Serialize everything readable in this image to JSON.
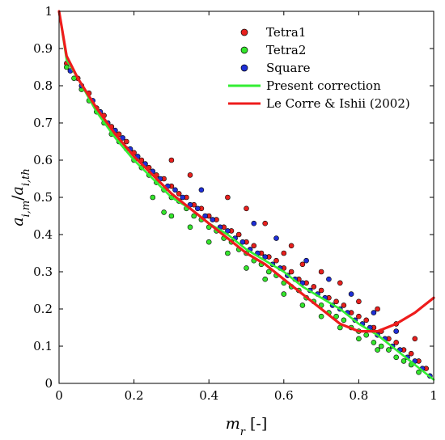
{
  "chart_data": {
    "type": "scatter",
    "xlabel": "m_r [-]",
    "ylabel": "a_{i,m}/a_{i,th}",
    "xlim": [
      0,
      1
    ],
    "ylim": [
      0,
      1
    ],
    "xticks": [
      "0",
      "0.2",
      "0.4",
      "0.6",
      "0.8",
      "1"
    ],
    "yticks": [
      "0",
      "0.1",
      "0.2",
      "0.3",
      "0.4",
      "0.5",
      "0.6",
      "0.7",
      "0.8",
      "0.9",
      "1"
    ],
    "grid": false,
    "legend_position": "top-right",
    "series": [
      {
        "name": "Tetra1",
        "kind": "scatter",
        "color": "#e8201e",
        "points": [
          [
            0.02,
            0.86
          ],
          [
            0.05,
            0.82
          ],
          [
            0.08,
            0.78
          ],
          [
            0.1,
            0.74
          ],
          [
            0.12,
            0.72
          ],
          [
            0.14,
            0.69
          ],
          [
            0.16,
            0.67
          ],
          [
            0.18,
            0.65
          ],
          [
            0.2,
            0.62
          ],
          [
            0.22,
            0.6
          ],
          [
            0.24,
            0.58
          ],
          [
            0.26,
            0.56
          ],
          [
            0.28,
            0.55
          ],
          [
            0.3,
            0.53
          ],
          [
            0.32,
            0.51
          ],
          [
            0.34,
            0.5
          ],
          [
            0.36,
            0.48
          ],
          [
            0.38,
            0.47
          ],
          [
            0.4,
            0.45
          ],
          [
            0.42,
            0.44
          ],
          [
            0.44,
            0.42
          ],
          [
            0.46,
            0.41
          ],
          [
            0.48,
            0.4
          ],
          [
            0.5,
            0.38
          ],
          [
            0.52,
            0.37
          ],
          [
            0.54,
            0.35
          ],
          [
            0.56,
            0.34
          ],
          [
            0.58,
            0.33
          ],
          [
            0.6,
            0.31
          ],
          [
            0.62,
            0.3
          ],
          [
            0.64,
            0.28
          ],
          [
            0.66,
            0.27
          ],
          [
            0.68,
            0.26
          ],
          [
            0.7,
            0.25
          ],
          [
            0.72,
            0.23
          ],
          [
            0.74,
            0.22
          ],
          [
            0.76,
            0.21
          ],
          [
            0.78,
            0.19
          ],
          [
            0.8,
            0.18
          ],
          [
            0.82,
            0.17
          ],
          [
            0.84,
            0.15
          ],
          [
            0.86,
            0.14
          ],
          [
            0.88,
            0.12
          ],
          [
            0.9,
            0.11
          ],
          [
            0.92,
            0.09
          ],
          [
            0.94,
            0.08
          ],
          [
            0.96,
            0.06
          ],
          [
            0.98,
            0.04
          ],
          [
            0.6,
            0.35
          ],
          [
            0.65,
            0.32
          ],
          [
            0.7,
            0.3
          ],
          [
            0.75,
            0.27
          ],
          [
            0.8,
            0.22
          ],
          [
            0.85,
            0.2
          ],
          [
            0.9,
            0.16
          ],
          [
            0.95,
            0.12
          ],
          [
            0.45,
            0.5
          ],
          [
            0.5,
            0.47
          ],
          [
            0.55,
            0.43
          ],
          [
            0.35,
            0.56
          ],
          [
            0.3,
            0.6
          ],
          [
            0.62,
            0.37
          ]
        ]
      },
      {
        "name": "Tetra2",
        "kind": "scatter",
        "color": "#34e52c",
        "points": [
          [
            0.02,
            0.85
          ],
          [
            0.04,
            0.82
          ],
          [
            0.06,
            0.79
          ],
          [
            0.08,
            0.76
          ],
          [
            0.1,
            0.73
          ],
          [
            0.12,
            0.7
          ],
          [
            0.14,
            0.67
          ],
          [
            0.16,
            0.65
          ],
          [
            0.18,
            0.63
          ],
          [
            0.2,
            0.6
          ],
          [
            0.22,
            0.58
          ],
          [
            0.24,
            0.56
          ],
          [
            0.26,
            0.54
          ],
          [
            0.28,
            0.52
          ],
          [
            0.3,
            0.5
          ],
          [
            0.32,
            0.49
          ],
          [
            0.34,
            0.47
          ],
          [
            0.36,
            0.45
          ],
          [
            0.38,
            0.44
          ],
          [
            0.4,
            0.42
          ],
          [
            0.42,
            0.41
          ],
          [
            0.44,
            0.39
          ],
          [
            0.46,
            0.38
          ],
          [
            0.48,
            0.36
          ],
          [
            0.5,
            0.35
          ],
          [
            0.52,
            0.33
          ],
          [
            0.54,
            0.32
          ],
          [
            0.56,
            0.3
          ],
          [
            0.58,
            0.29
          ],
          [
            0.6,
            0.27
          ],
          [
            0.62,
            0.26
          ],
          [
            0.64,
            0.25
          ],
          [
            0.66,
            0.23
          ],
          [
            0.68,
            0.22
          ],
          [
            0.7,
            0.21
          ],
          [
            0.72,
            0.19
          ],
          [
            0.74,
            0.18
          ],
          [
            0.76,
            0.17
          ],
          [
            0.78,
            0.15
          ],
          [
            0.8,
            0.14
          ],
          [
            0.82,
            0.13
          ],
          [
            0.84,
            0.11
          ],
          [
            0.86,
            0.1
          ],
          [
            0.88,
            0.09
          ],
          [
            0.9,
            0.07
          ],
          [
            0.92,
            0.06
          ],
          [
            0.94,
            0.05
          ],
          [
            0.96,
            0.03
          ],
          [
            0.3,
            0.45
          ],
          [
            0.4,
            0.38
          ],
          [
            0.5,
            0.31
          ],
          [
            0.6,
            0.24
          ],
          [
            0.7,
            0.18
          ],
          [
            0.8,
            0.12
          ],
          [
            0.25,
            0.5
          ],
          [
            0.35,
            0.42
          ],
          [
            0.45,
            0.35
          ],
          [
            0.55,
            0.28
          ],
          [
            0.65,
            0.21
          ],
          [
            0.75,
            0.15
          ],
          [
            0.85,
            0.09
          ],
          [
            0.28,
            0.46
          ]
        ]
      },
      {
        "name": "Square",
        "kind": "scatter",
        "color": "#1f2fd6",
        "points": [
          [
            0.03,
            0.84
          ],
          [
            0.06,
            0.8
          ],
          [
            0.09,
            0.76
          ],
          [
            0.11,
            0.73
          ],
          [
            0.13,
            0.7
          ],
          [
            0.15,
            0.68
          ],
          [
            0.17,
            0.66
          ],
          [
            0.19,
            0.63
          ],
          [
            0.21,
            0.61
          ],
          [
            0.23,
            0.59
          ],
          [
            0.25,
            0.57
          ],
          [
            0.27,
            0.55
          ],
          [
            0.29,
            0.53
          ],
          [
            0.31,
            0.52
          ],
          [
            0.33,
            0.5
          ],
          [
            0.35,
            0.48
          ],
          [
            0.37,
            0.47
          ],
          [
            0.39,
            0.45
          ],
          [
            0.41,
            0.44
          ],
          [
            0.43,
            0.42
          ],
          [
            0.45,
            0.41
          ],
          [
            0.47,
            0.39
          ],
          [
            0.49,
            0.38
          ],
          [
            0.51,
            0.36
          ],
          [
            0.53,
            0.35
          ],
          [
            0.55,
            0.34
          ],
          [
            0.57,
            0.32
          ],
          [
            0.59,
            0.31
          ],
          [
            0.61,
            0.29
          ],
          [
            0.63,
            0.28
          ],
          [
            0.65,
            0.27
          ],
          [
            0.67,
            0.25
          ],
          [
            0.69,
            0.24
          ],
          [
            0.71,
            0.23
          ],
          [
            0.73,
            0.21
          ],
          [
            0.75,
            0.2
          ],
          [
            0.77,
            0.19
          ],
          [
            0.79,
            0.17
          ],
          [
            0.81,
            0.16
          ],
          [
            0.83,
            0.15
          ],
          [
            0.85,
            0.13
          ],
          [
            0.87,
            0.12
          ],
          [
            0.89,
            0.1
          ],
          [
            0.91,
            0.09
          ],
          [
            0.93,
            0.07
          ],
          [
            0.95,
            0.06
          ],
          [
            0.97,
            0.04
          ],
          [
            0.99,
            0.02
          ],
          [
            0.52,
            0.43
          ],
          [
            0.58,
            0.39
          ],
          [
            0.66,
            0.33
          ],
          [
            0.72,
            0.28
          ],
          [
            0.78,
            0.24
          ],
          [
            0.84,
            0.19
          ],
          [
            0.9,
            0.14
          ],
          [
            0.38,
            0.52
          ]
        ]
      },
      {
        "name": "Present correction",
        "kind": "line",
        "color": "#33ee33",
        "x": [
          0,
          0.02,
          0.05,
          0.1,
          0.15,
          0.2,
          0.25,
          0.3,
          0.35,
          0.4,
          0.45,
          0.5,
          0.55,
          0.6,
          0.65,
          0.7,
          0.75,
          0.8,
          0.85,
          0.9,
          0.95,
          1
        ],
        "y": [
          1,
          0.87,
          0.82,
          0.73,
          0.66,
          0.6,
          0.55,
          0.5,
          0.47,
          0.43,
          0.4,
          0.36,
          0.33,
          0.3,
          0.26,
          0.23,
          0.2,
          0.16,
          0.13,
          0.09,
          0.05,
          0.01
        ]
      },
      {
        "name": "Le Corre & Ishii (2002)",
        "kind": "line",
        "color": "#ee1c1c",
        "x": [
          0,
          0.02,
          0.05,
          0.1,
          0.15,
          0.2,
          0.25,
          0.3,
          0.35,
          0.4,
          0.45,
          0.5,
          0.55,
          0.6,
          0.65,
          0.7,
          0.75,
          0.8,
          0.85,
          0.9,
          0.95,
          1
        ],
        "y": [
          1,
          0.88,
          0.82,
          0.74,
          0.67,
          0.61,
          0.56,
          0.51,
          0.47,
          0.43,
          0.39,
          0.35,
          0.32,
          0.28,
          0.24,
          0.2,
          0.16,
          0.14,
          0.14,
          0.16,
          0.19,
          0.23
        ]
      }
    ]
  }
}
